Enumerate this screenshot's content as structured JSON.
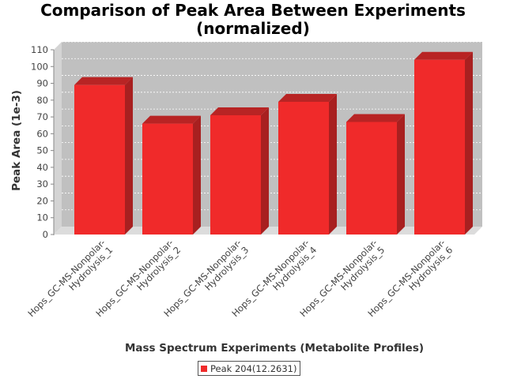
{
  "chart_data": {
    "type": "bar",
    "title_lines": [
      "Comparison of Peak Area Between Experiments",
      "(normalized)"
    ],
    "xlabel": "Mass Spectrum Experiments (Metabolite Profiles)",
    "ylabel": "Peak Area (1e-3)",
    "categories": [
      [
        "Hops_GC-MS-Nonpolar-",
        "Hydrolysis_1"
      ],
      [
        "Hops_GC-MS-Nonpolar-",
        "Hydrolysis_2"
      ],
      [
        "Hops_GC-MS-Nonpolar-",
        "Hydrolysis_3"
      ],
      [
        "Hops_GC-MS-Nonpolar-",
        "Hydrolysis_4"
      ],
      [
        "Hops_GC-MS-Nonpolar-",
        "Hydrolysis_5"
      ],
      [
        "Hops_GC-MS-Nonpolar-",
        "Hydrolysis_6"
      ]
    ],
    "series": [
      {
        "name": "Peak 204(12.2631)",
        "values": [
          89,
          66,
          71,
          79,
          67,
          104
        ]
      }
    ],
    "ylim": [
      0,
      110
    ],
    "yticks": [
      0,
      10,
      20,
      30,
      40,
      50,
      60,
      70,
      80,
      90,
      100,
      110
    ],
    "grid": true,
    "legend_position": "bottom-center",
    "colors": {
      "bar": "#f02a2a",
      "bar_top": "#b82424",
      "bar_side": "#a82020",
      "plot_back": "#c0c0c0",
      "plot_floor": "#dcdcdc",
      "plot_wall": "#d4d4d4"
    }
  }
}
